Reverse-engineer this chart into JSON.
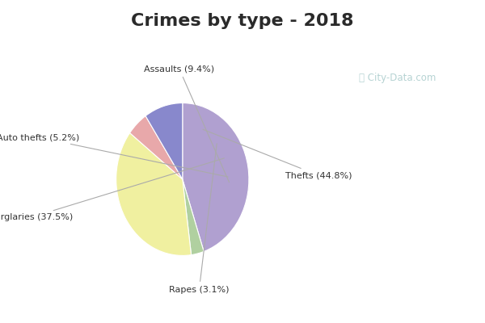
{
  "title": "Crimes by type - 2018",
  "title_fontsize": 16,
  "title_fontweight": "bold",
  "title_color": "#2a2a2a",
  "header_color": "#00e8f8",
  "chart_bg_top": "#d0ede8",
  "chart_bg_bottom": "#c8e8d8",
  "labels": [
    "Thefts",
    "Burglaries",
    "Rapes",
    "Assaults",
    "Auto thefts"
  ],
  "values": [
    44.8,
    37.5,
    3.1,
    9.4,
    5.2
  ],
  "colors": [
    "#b0a0d0",
    "#f0f0a0",
    "#b0d0a0",
    "#8888cc",
    "#e8a8aa"
  ],
  "annotation_color": "#333333",
  "line_color": "#aaaaaa",
  "watermark": "ⓘ City-Data.com",
  "watermark_color": "#aacccc"
}
